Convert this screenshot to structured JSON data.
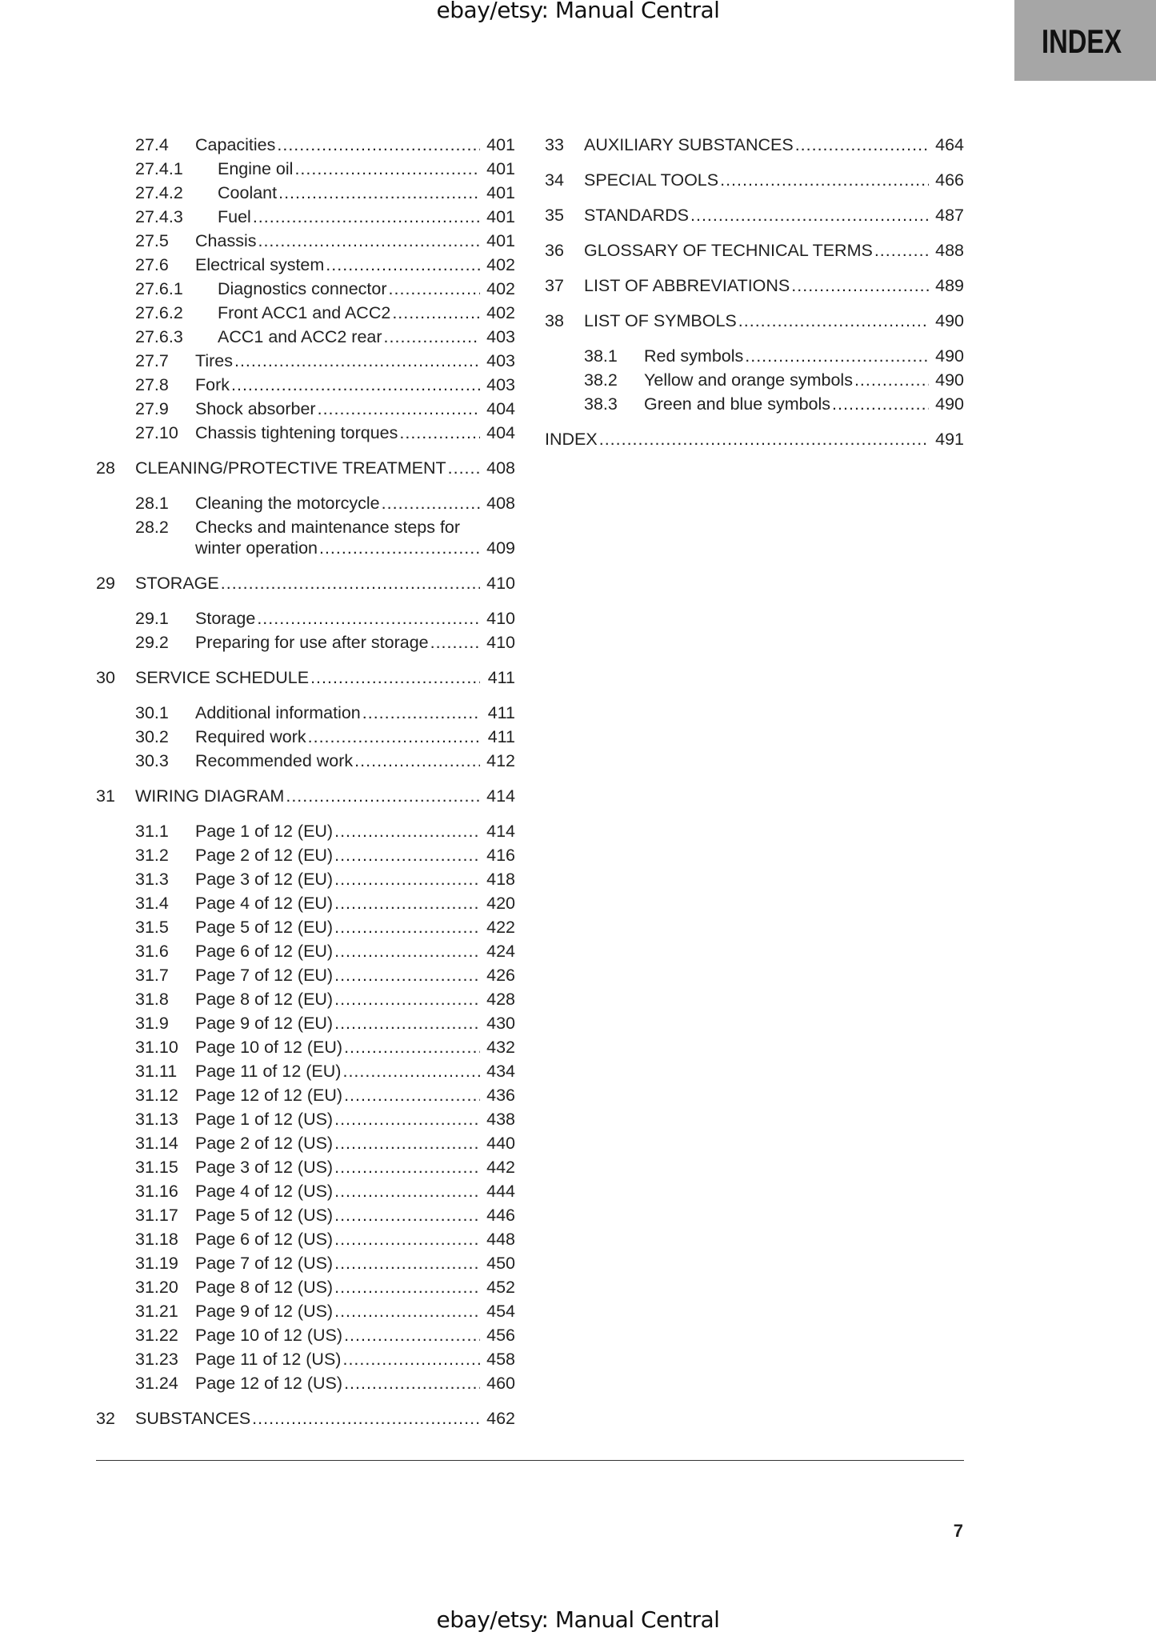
{
  "header": {
    "text": "ebay/etsy: Manual Central"
  },
  "footer": {
    "text": "ebay/etsy: Manual Central"
  },
  "tab": {
    "label": "INDEX",
    "color": "#a6a6a6"
  },
  "page_number": "7",
  "left": {
    "entries": [
      {
        "level": "section",
        "num": "27.4",
        "title": "Capacities",
        "page": "401"
      },
      {
        "level": "subsection",
        "num": "27.4.1",
        "title": "Engine oil",
        "page": "401"
      },
      {
        "level": "subsection",
        "num": "27.4.2",
        "title": "Coolant",
        "page": "401"
      },
      {
        "level": "subsection",
        "num": "27.4.3",
        "title": "Fuel",
        "page": "401"
      },
      {
        "level": "section",
        "num": "27.5",
        "title": "Chassis",
        "page": "401"
      },
      {
        "level": "section",
        "num": "27.6",
        "title": "Electrical system",
        "page": "402"
      },
      {
        "level": "subsection",
        "num": "27.6.1",
        "title": "Diagnostics connector",
        "page": "402"
      },
      {
        "level": "subsection",
        "num": "27.6.2",
        "title": "Front ACC1 and ACC2",
        "page": "402"
      },
      {
        "level": "subsection",
        "num": "27.6.3",
        "title": "ACC1 and ACC2 rear",
        "page": "403"
      },
      {
        "level": "section",
        "num": "27.7",
        "title": "Tires",
        "page": "403"
      },
      {
        "level": "section",
        "num": "27.8",
        "title": "Fork",
        "page": "403"
      },
      {
        "level": "section",
        "num": "27.9",
        "title": "Shock absorber",
        "page": "404"
      },
      {
        "level": "section",
        "num": "27.10",
        "title": "Chassis tightening torques",
        "page": "404"
      },
      {
        "level": "chapter",
        "num": "28",
        "title": "CLEANING/PROTECTIVE TREATMENT",
        "page": "408"
      },
      {
        "level": "section",
        "num": "28.1",
        "title": "Cleaning the motorcycle",
        "page": "408"
      },
      {
        "level": "section",
        "num": "28.2",
        "title": "Checks and maintenance steps for",
        "title2": "winter operation",
        "page": "409"
      },
      {
        "level": "chapter",
        "num": "29",
        "title": "STORAGE",
        "page": "410"
      },
      {
        "level": "section",
        "num": "29.1",
        "title": "Storage",
        "page": "410"
      },
      {
        "level": "section",
        "num": "29.2",
        "title": "Preparing for use after storage",
        "page": "410"
      },
      {
        "level": "chapter",
        "num": "30",
        "title": "SERVICE SCHEDULE",
        "page": "411"
      },
      {
        "level": "section",
        "num": "30.1",
        "title": "Additional information",
        "page": "411"
      },
      {
        "level": "section",
        "num": "30.2",
        "title": "Required work",
        "page": "411"
      },
      {
        "level": "section",
        "num": "30.3",
        "title": "Recommended work",
        "page": "412"
      },
      {
        "level": "chapter",
        "num": "31",
        "title": "WIRING DIAGRAM",
        "page": "414"
      },
      {
        "level": "section",
        "num": "31.1",
        "title": "Page 1 of 12 (EU)",
        "page": "414"
      },
      {
        "level": "section",
        "num": "31.2",
        "title": "Page 2 of 12 (EU)",
        "page": "416"
      },
      {
        "level": "section",
        "num": "31.3",
        "title": "Page 3 of 12 (EU)",
        "page": "418"
      },
      {
        "level": "section",
        "num": "31.4",
        "title": "Page 4 of 12 (EU)",
        "page": "420"
      },
      {
        "level": "section",
        "num": "31.5",
        "title": "Page 5 of 12 (EU)",
        "page": "422"
      },
      {
        "level": "section",
        "num": "31.6",
        "title": "Page 6 of 12 (EU)",
        "page": "424"
      },
      {
        "level": "section",
        "num": "31.7",
        "title": "Page 7 of 12 (EU)",
        "page": "426"
      },
      {
        "level": "section",
        "num": "31.8",
        "title": "Page 8 of 12 (EU)",
        "page": "428"
      },
      {
        "level": "section",
        "num": "31.9",
        "title": "Page 9 of 12 (EU)",
        "page": "430"
      },
      {
        "level": "section",
        "num": "31.10",
        "title": "Page 10 of 12 (EU)",
        "page": "432"
      },
      {
        "level": "section",
        "num": "31.11",
        "title": "Page 11 of 12 (EU)",
        "page": "434"
      },
      {
        "level": "section",
        "num": "31.12",
        "title": "Page 12 of 12 (EU)",
        "page": "436"
      },
      {
        "level": "section",
        "num": "31.13",
        "title": "Page 1 of 12 (US)",
        "page": "438"
      },
      {
        "level": "section",
        "num": "31.14",
        "title": "Page 2 of 12 (US)",
        "page": "440"
      },
      {
        "level": "section",
        "num": "31.15",
        "title": "Page 3 of 12 (US)",
        "page": "442"
      },
      {
        "level": "section",
        "num": "31.16",
        "title": "Page 4 of 12 (US)",
        "page": "444"
      },
      {
        "level": "section",
        "num": "31.17",
        "title": "Page 5 of 12 (US)",
        "page": "446"
      },
      {
        "level": "section",
        "num": "31.18",
        "title": "Page 6 of 12 (US)",
        "page": "448"
      },
      {
        "level": "section",
        "num": "31.19",
        "title": "Page 7 of 12 (US)",
        "page": "450"
      },
      {
        "level": "section",
        "num": "31.20",
        "title": "Page 8 of 12 (US)",
        "page": "452"
      },
      {
        "level": "section",
        "num": "31.21",
        "title": "Page 9 of 12 (US)",
        "page": "454"
      },
      {
        "level": "section",
        "num": "31.22",
        "title": "Page 10 of 12 (US)",
        "page": "456"
      },
      {
        "level": "section",
        "num": "31.23",
        "title": "Page 11 of 12 (US)",
        "page": "458"
      },
      {
        "level": "section",
        "num": "31.24",
        "title": "Page 12 of 12 (US)",
        "page": "460"
      },
      {
        "level": "chapter",
        "num": "32",
        "title": "SUBSTANCES",
        "page": "462"
      }
    ]
  },
  "right": {
    "entries": [
      {
        "level": "chapter",
        "num": "33",
        "title": "AUXILIARY SUBSTANCES",
        "page": "464"
      },
      {
        "level": "chapter",
        "num": "34",
        "title": "SPECIAL TOOLS",
        "page": "466"
      },
      {
        "level": "chapter",
        "num": "35",
        "title": "STANDARDS",
        "page": "487"
      },
      {
        "level": "chapter",
        "num": "36",
        "title": "GLOSSARY OF TECHNICAL TERMS",
        "page": "488"
      },
      {
        "level": "chapter",
        "num": "37",
        "title": "LIST OF ABBREVIATIONS",
        "page": "489"
      },
      {
        "level": "chapter",
        "num": "38",
        "title": "LIST OF SYMBOLS",
        "page": "490"
      },
      {
        "level": "section",
        "num": "38.1",
        "title": "Red symbols",
        "page": "490"
      },
      {
        "level": "section",
        "num": "38.2",
        "title": "Yellow and orange symbols",
        "page": "490"
      },
      {
        "level": "section",
        "num": "38.3",
        "title": "Green and blue symbols",
        "page": "490"
      },
      {
        "level": "chapter",
        "num": "",
        "title": "INDEX",
        "page": "491"
      }
    ]
  }
}
